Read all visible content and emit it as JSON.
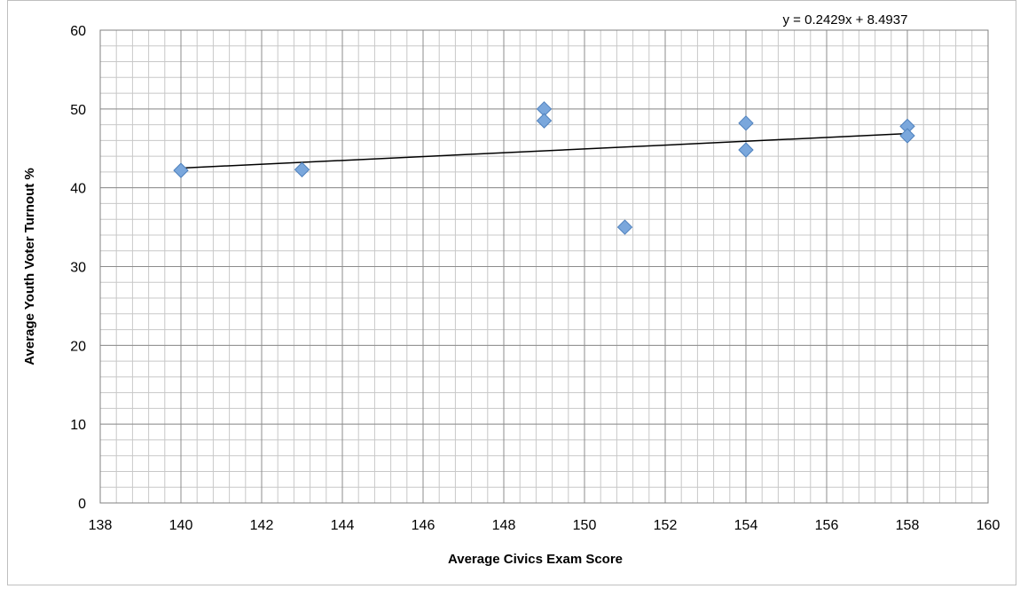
{
  "chart_data": {
    "type": "scatter",
    "title": "",
    "xlabel": "Average Civics Exam Score",
    "ylabel": "Average Youth Voter Turnout %",
    "xlim": [
      138,
      160
    ],
    "ylim": [
      0,
      60
    ],
    "x_ticks": [
      138,
      140,
      142,
      144,
      146,
      148,
      150,
      152,
      154,
      156,
      158,
      160
    ],
    "y_ticks": [
      0,
      10,
      20,
      30,
      40,
      50,
      60
    ],
    "grid": true,
    "legend": "none",
    "marker": "diamond",
    "marker_color": "#7aa7dc",
    "series": [
      {
        "points": [
          {
            "x": 140,
            "y": 42.2
          },
          {
            "x": 143,
            "y": 42.3
          },
          {
            "x": 149,
            "y": 50.0
          },
          {
            "x": 149,
            "y": 48.5
          },
          {
            "x": 151,
            "y": 35.0
          },
          {
            "x": 154,
            "y": 48.2
          },
          {
            "x": 154,
            "y": 44.8
          },
          {
            "x": 158,
            "y": 47.8
          },
          {
            "x": 158,
            "y": 46.6
          }
        ]
      }
    ],
    "trendline": {
      "type": "linear",
      "slope": 0.2429,
      "intercept": 8.4937,
      "x_range": [
        140,
        158
      ],
      "label": "y = 0.2429x + 8.4937",
      "color": "#000000"
    }
  }
}
